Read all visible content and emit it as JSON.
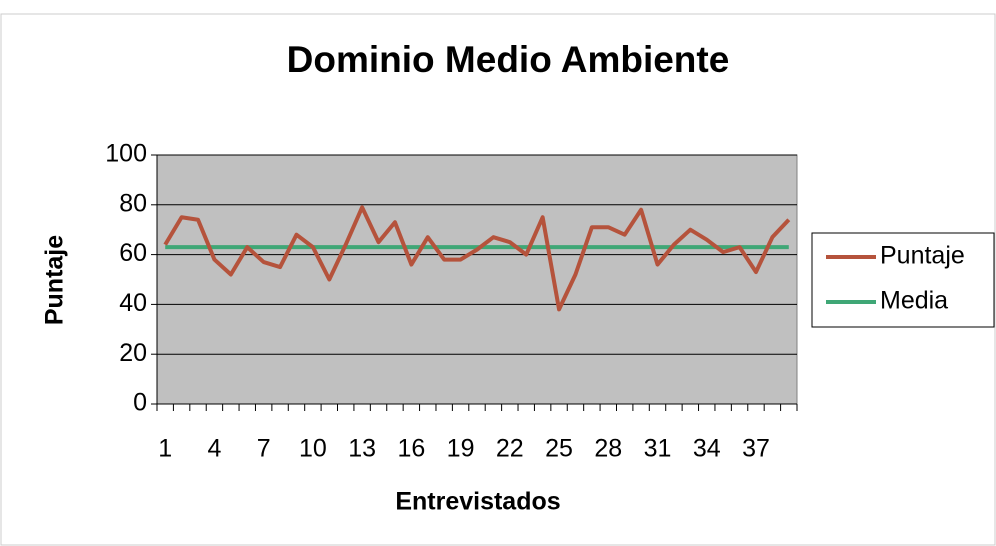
{
  "chart_data": {
    "type": "line",
    "title": "Dominio Medio Ambiente",
    "x_label": "Entrevistados",
    "y_label": "Puntaje",
    "categories": [
      "1",
      null,
      null,
      "4",
      null,
      null,
      "7",
      null,
      null,
      "10",
      null,
      null,
      "13",
      null,
      null,
      "16",
      null,
      null,
      "19",
      null,
      null,
      "22",
      null,
      null,
      "25",
      null,
      null,
      "28",
      null,
      null,
      "31",
      null,
      null,
      "34",
      null,
      null,
      "37",
      null,
      null
    ],
    "series": [
      {
        "name": "Puntaje",
        "color": "#b5533c",
        "values": [
          64,
          75,
          74,
          58,
          52,
          63,
          57,
          55,
          68,
          63,
          50,
          64,
          79,
          65,
          73,
          56,
          67,
          58,
          58,
          62,
          67,
          65,
          60,
          75,
          38,
          52,
          71,
          71,
          68,
          78,
          56,
          64,
          70,
          66,
          61,
          63,
          53,
          67,
          74
        ]
      },
      {
        "name": "Media",
        "color": "#3fa776",
        "values": [
          63,
          63,
          63,
          63,
          63,
          63,
          63,
          63,
          63,
          63,
          63,
          63,
          63,
          63,
          63,
          63,
          63,
          63,
          63,
          63,
          63,
          63,
          63,
          63,
          63,
          63,
          63,
          63,
          63,
          63,
          63,
          63,
          63,
          63,
          63,
          63,
          63,
          63,
          63
        ]
      }
    ],
    "ylim": [
      0,
      100
    ],
    "yticks": [
      0,
      20,
      40,
      60,
      80,
      100
    ],
    "grid": true,
    "legend": "right",
    "plot_background": "#c0c0c0"
  }
}
